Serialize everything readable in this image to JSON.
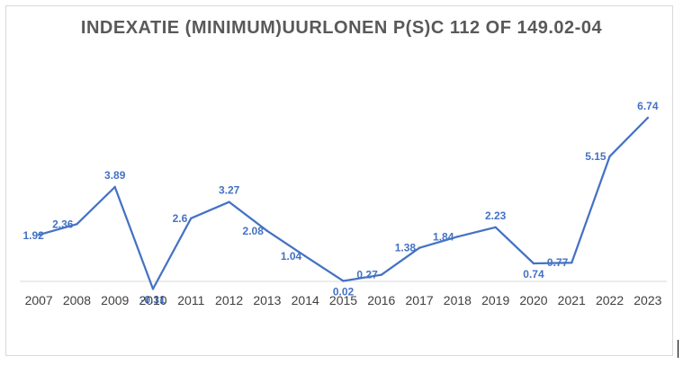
{
  "chart_data": {
    "type": "line",
    "title": "INDEXATIE (MINIMUM)UURLONEN P(S)C 112 OF 149.02-04",
    "xlabel": "",
    "ylabel": "",
    "categories": [
      "2007",
      "2008",
      "2009",
      "2010",
      "2011",
      "2012",
      "2013",
      "2014",
      "2015",
      "2016",
      "2017",
      "2018",
      "2019",
      "2020",
      "2021",
      "2022",
      "2023"
    ],
    "series": [
      {
        "values": [
          1.92,
          2.36,
          3.89,
          -0.31,
          2.6,
          3.27,
          2.08,
          1.04,
          0.02,
          0.27,
          1.38,
          1.84,
          2.23,
          0.74,
          0.77,
          5.15,
          6.74
        ],
        "labels": [
          "1.92",
          "2.36",
          "3.89",
          "-0.31",
          "2.6",
          "3.27",
          "2.08",
          "1.04",
          "0.02",
          "0.27",
          "1.38",
          "1.84",
          "2.23",
          "0.74",
          "0.77",
          "5.15",
          "6.74"
        ]
      }
    ],
    "ylim": [
      -0.4,
      8.0
    ],
    "grid": false,
    "legend": "none",
    "colors": {
      "line": "#4472c4",
      "axis": "#d9d9d9",
      "tick_label": "#404040",
      "title": "#595959"
    }
  }
}
